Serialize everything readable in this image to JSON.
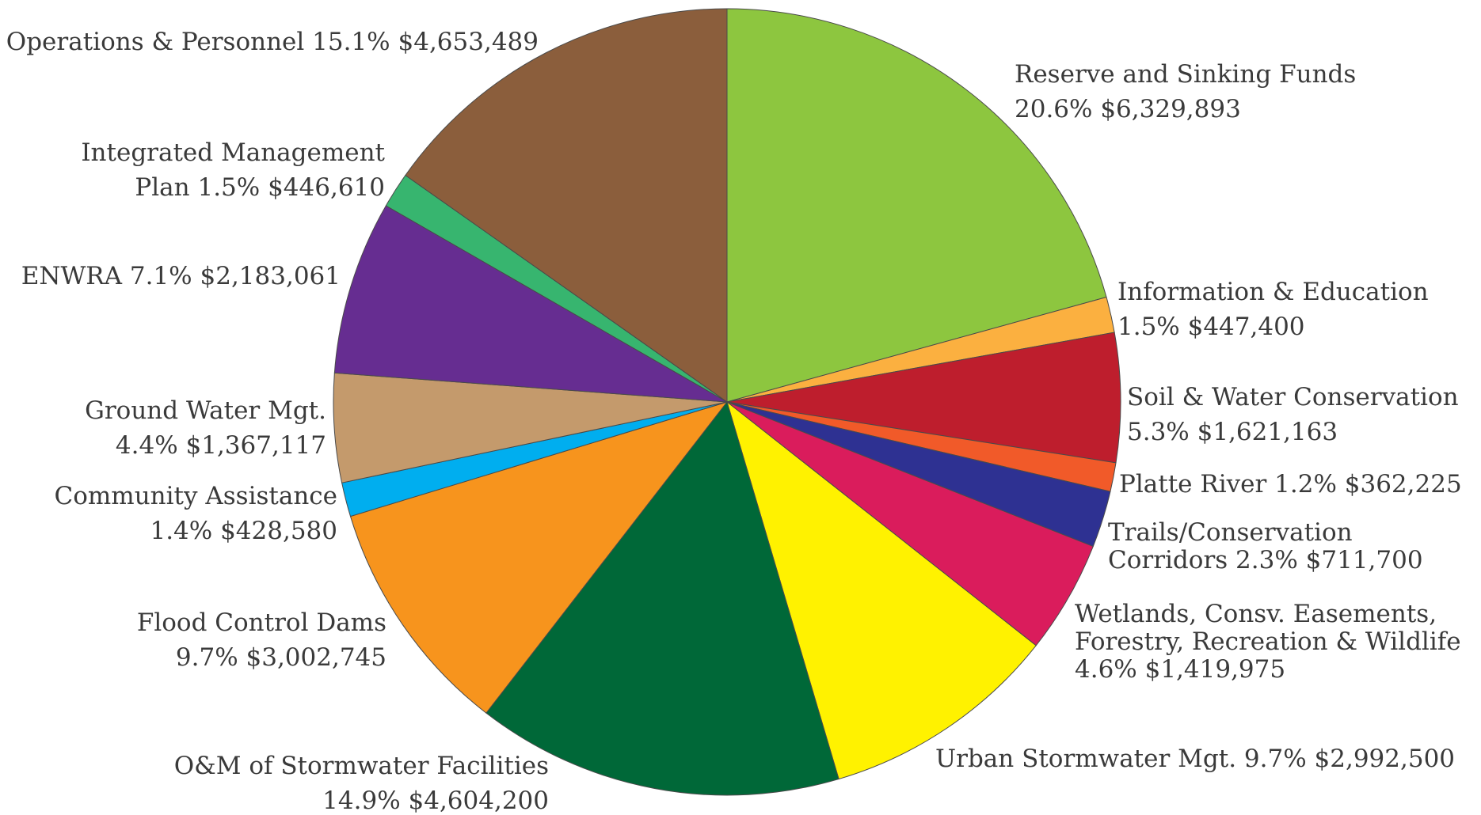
{
  "chart_data": {
    "type": "pie",
    "slices": [
      {
        "name": "Reserve and Sinking Funds",
        "percent": "20.6%",
        "amount": "$6,329,893",
        "value": 6329893,
        "color": "#8dc63f"
      },
      {
        "name": "Information & Education",
        "percent": "1.5%",
        "amount": "$447,400",
        "value": 447400,
        "color": "#fbb040"
      },
      {
        "name": "Soil & Water Conservation",
        "percent": "5.3%",
        "amount": "$1,621,163",
        "value": 1621163,
        "color": "#be1e2d"
      },
      {
        "name": "Platte River",
        "percent": "1.2%",
        "amount": "$362,225",
        "value": 362225,
        "color": "#f15a29"
      },
      {
        "name": "Trails/Conservation Corridors",
        "percent": "2.3%",
        "amount": "$711,700",
        "value": 711700,
        "color": "#2e3192"
      },
      {
        "name": "Wetlands, Consv. Easements, Forestry, Recreation & Wildlife",
        "percent": "4.6%",
        "amount": "$1,419,975",
        "value": 1419975,
        "color": "#da1c5c"
      },
      {
        "name": "Urban Stormwater Mgt.",
        "percent": "9.7%",
        "amount": "$2,992,500",
        "value": 2992500,
        "color": "#fff200"
      },
      {
        "name": "O&M of Stormwater Facilities",
        "percent": "14.9%",
        "amount": "$4,604,200",
        "value": 4604200,
        "color": "#006838"
      },
      {
        "name": "Flood Control Dams",
        "percent": "9.7%",
        "amount": "$3,002,745",
        "value": 3002745,
        "color": "#f7941d"
      },
      {
        "name": "Community Assistance",
        "percent": "1.4%",
        "amount": "$428,580",
        "value": 428580,
        "color": "#00aeef"
      },
      {
        "name": "Ground Water Mgt.",
        "percent": "4.4%",
        "amount": "$1,367,117",
        "value": 1367117,
        "color": "#c49a6c"
      },
      {
        "name": "ENWRA",
        "percent": "7.1%",
        "amount": "$2,183,061",
        "value": 2183061,
        "color": "#662d91"
      },
      {
        "name": "Integrated Management Plan",
        "percent": "1.5%",
        "amount": "$446,610",
        "value": 446610,
        "color": "#37b56f"
      },
      {
        "name": "Operations & Personnel",
        "percent": "15.1%",
        "amount": "$4,653,489",
        "value": 4653489,
        "color": "#8b5e3c"
      }
    ],
    "labels": [
      {
        "lines": [
          "Reserve and Sinking Funds",
          "20.6% $6,329,893"
        ]
      },
      {
        "lines": [
          "Information & Education",
          "1.5% $447,400"
        ]
      },
      {
        "lines": [
          "Soil & Water Conservation",
          "5.3% $1,621,163"
        ]
      },
      {
        "lines": [
          "Platte River 1.2% $362,225"
        ]
      },
      {
        "lines": [
          "Trails/Conservation",
          "Corridors 2.3% $711,700"
        ]
      },
      {
        "lines": [
          "Wetlands, Consv. Easements,",
          "Forestry, Recreation & Wildlife",
          "4.6% $1,419,975"
        ]
      },
      {
        "lines": [
          "Urban Stormwater Mgt. 9.7% $2,992,500"
        ]
      },
      {
        "lines": [
          "O&M of Stormwater Facilities",
          "14.9% $4,604,200"
        ]
      },
      {
        "lines": [
          "Flood Control Dams",
          "9.7% $3,002,745"
        ]
      },
      {
        "lines": [
          "Community Assistance",
          "1.4% $428,580"
        ]
      },
      {
        "lines": [
          "Ground Water Mgt.",
          "4.4% $1,367,117"
        ]
      },
      {
        "lines": [
          "ENWRA 7.1% $2,183,061"
        ]
      },
      {
        "lines": [
          "Integrated Management",
          "Plan 1.5% $446,610"
        ]
      },
      {
        "lines": [
          "Operations & Personnel 15.1% $4,653,489"
        ]
      }
    ]
  }
}
